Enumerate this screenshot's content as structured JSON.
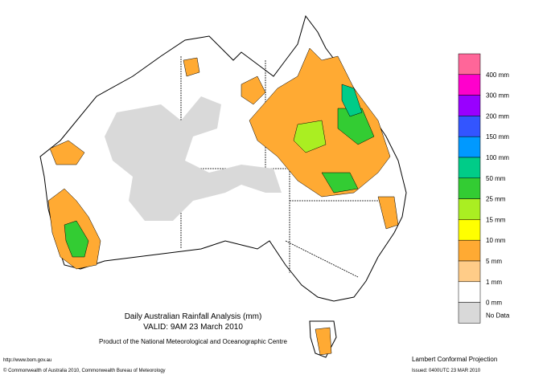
{
  "map": {
    "title": "Daily Australian Rainfall Analysis (mm)",
    "valid": "VALID: 9AM 23 March 2010",
    "product": "Product of the National Meteorological and Oceanographic Centre",
    "url": "http://www.bom.gov.au",
    "copyright": "© Commonwealth of Australia 2010, Commonwealth Bureau of Meteorology",
    "projection": "Lambert Conformal Projection",
    "issued": "Issued: 0400UTC 23 MAR 2010",
    "legend": {
      "colors": [
        "#ff6699",
        "#ff00cc",
        "#9900ff",
        "#3355ff",
        "#0099ff",
        "#00cc88",
        "#33cc33",
        "#aaee22",
        "#ffff00",
        "#ffaa33",
        "#ffcc88",
        "#ffffff",
        "#d9d9d9"
      ],
      "labels": [
        "400 mm",
        "300 mm",
        "200 mm",
        "150 mm",
        "100 mm",
        "50 mm",
        "25 mm",
        "15 mm",
        "10 mm",
        "5 mm",
        "1 mm",
        "0 mm",
        "No Data"
      ]
    }
  }
}
